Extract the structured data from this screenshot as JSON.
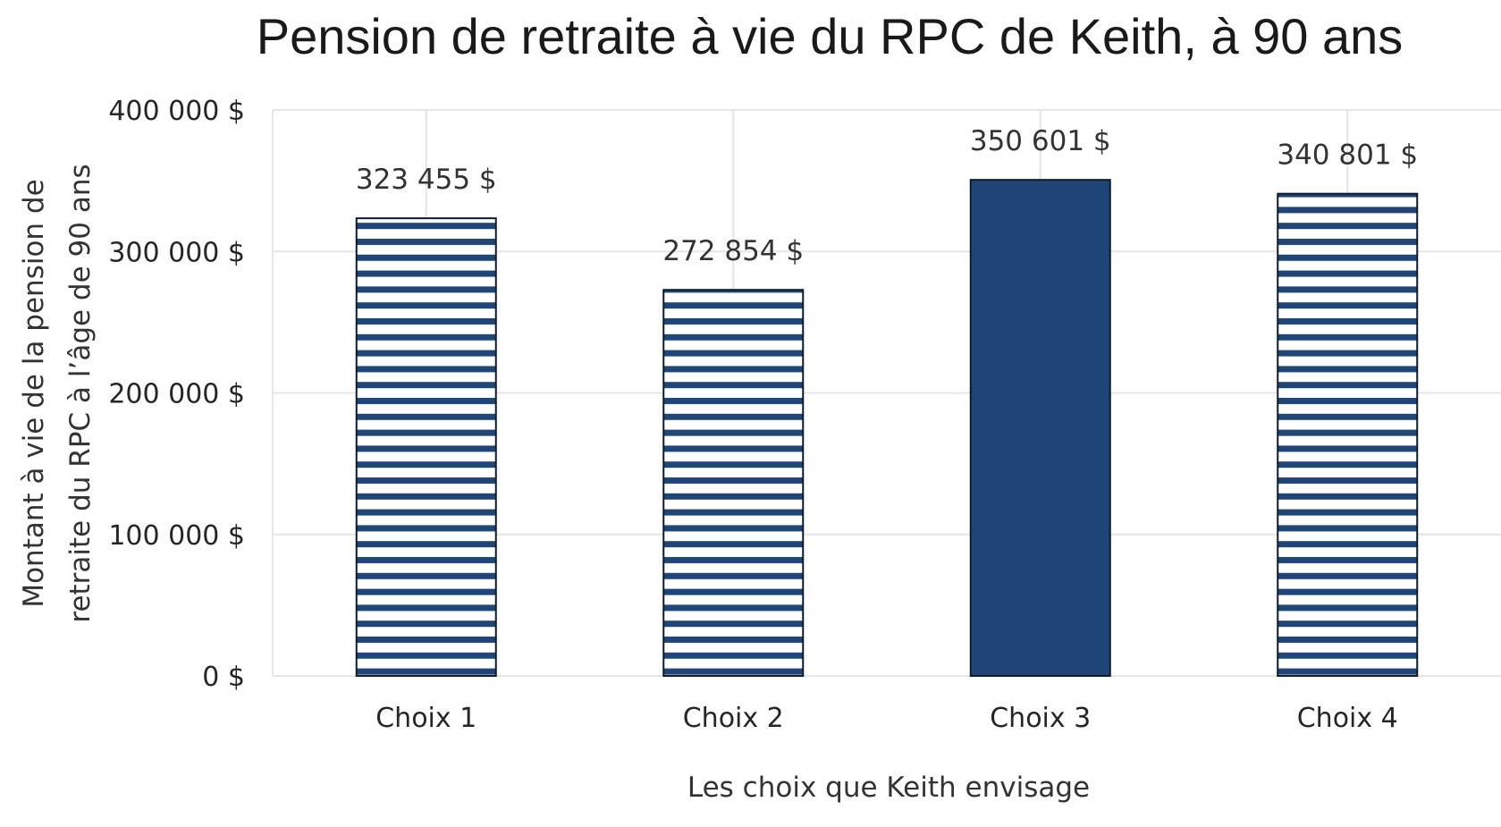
{
  "chart_data": {
    "type": "bar",
    "title": "Pension de retraite à vie du RPC de Keith, à 90 ans",
    "xlabel": "Les choix que Keith envisage",
    "ylabel_lines": [
      "Montant à vie de la pension de",
      "retraite du RPC à l’âge de 90 ans"
    ],
    "categories": [
      "Choix 1",
      "Choix 2",
      "Choix 3",
      "Choix 4"
    ],
    "values": [
      323455,
      272854,
      350601,
      340801
    ],
    "data_labels": [
      "323 455 $",
      "272 854 $",
      "350 601 $",
      "340 801 $"
    ],
    "bar_fill": [
      "striped",
      "striped",
      "solid",
      "striped"
    ],
    "ylim": [
      0,
      400000
    ],
    "yticks": [
      0,
      100000,
      200000,
      300000,
      400000
    ],
    "ytick_labels": [
      "0 $",
      "100 000 $",
      "200 000 $",
      "300 000 $",
      "400 000 $"
    ],
    "grid": true,
    "legend": "none",
    "colors": {
      "bar": "#1f4677",
      "stripe_gap": "#ffffff",
      "outline": "#0d1b2a",
      "grid": "#e6e6e6"
    }
  }
}
